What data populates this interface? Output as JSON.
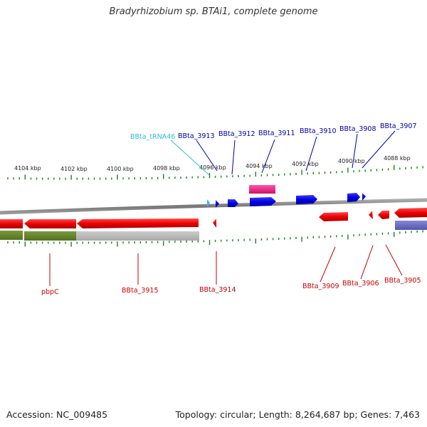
{
  "title": "Bradyrhizobium sp. BTAi1, complete genome",
  "footer": {
    "accession": "Accession: NC_009485",
    "summary": "Topology: circular; Length: 8,264,687 bp; Genes: 7,463"
  },
  "scale": {
    "labels": [
      "4104 kbp",
      "4102 kbp",
      "4100 kbp",
      "4098 kbp",
      "4096 kbp",
      "4094 kbp",
      "4092 kbp",
      "4090 kbp",
      "4088 kbp"
    ]
  },
  "colors": {
    "plus_gene": "#0000ee",
    "minus_gene": "#ee0000",
    "trna": "#33bbee",
    "rna_feature": "#ee2288",
    "backbone": "#888888",
    "tick": "#118811",
    "label_blue": "#0000aa",
    "label_red": "#cc0000",
    "label_cyan": "#33bbdd"
  },
  "genes_top": [
    {
      "label": "BBta_tRNA46",
      "kind": "trna"
    },
    {
      "label": "BBta_3913",
      "kind": "plus"
    },
    {
      "label": "BBta_3912",
      "kind": "plus"
    },
    {
      "label": "BBta_3911",
      "kind": "plus"
    },
    {
      "label": "BBta_3910",
      "kind": "plus"
    },
    {
      "label": "BBta_3908",
      "kind": "plus"
    },
    {
      "label": "BBta_3907",
      "kind": "plus"
    }
  ],
  "genes_bottom": [
    {
      "label": "pbpC",
      "kind": "minus"
    },
    {
      "label": "BBta_3915",
      "kind": "minus"
    },
    {
      "label": "BBta_3914",
      "kind": "minus"
    },
    {
      "label": "BBta_3909",
      "kind": "minus"
    },
    {
      "label": "BBta_3906",
      "kind": "minus"
    },
    {
      "label": "BBta_3905",
      "kind": "minus"
    }
  ]
}
